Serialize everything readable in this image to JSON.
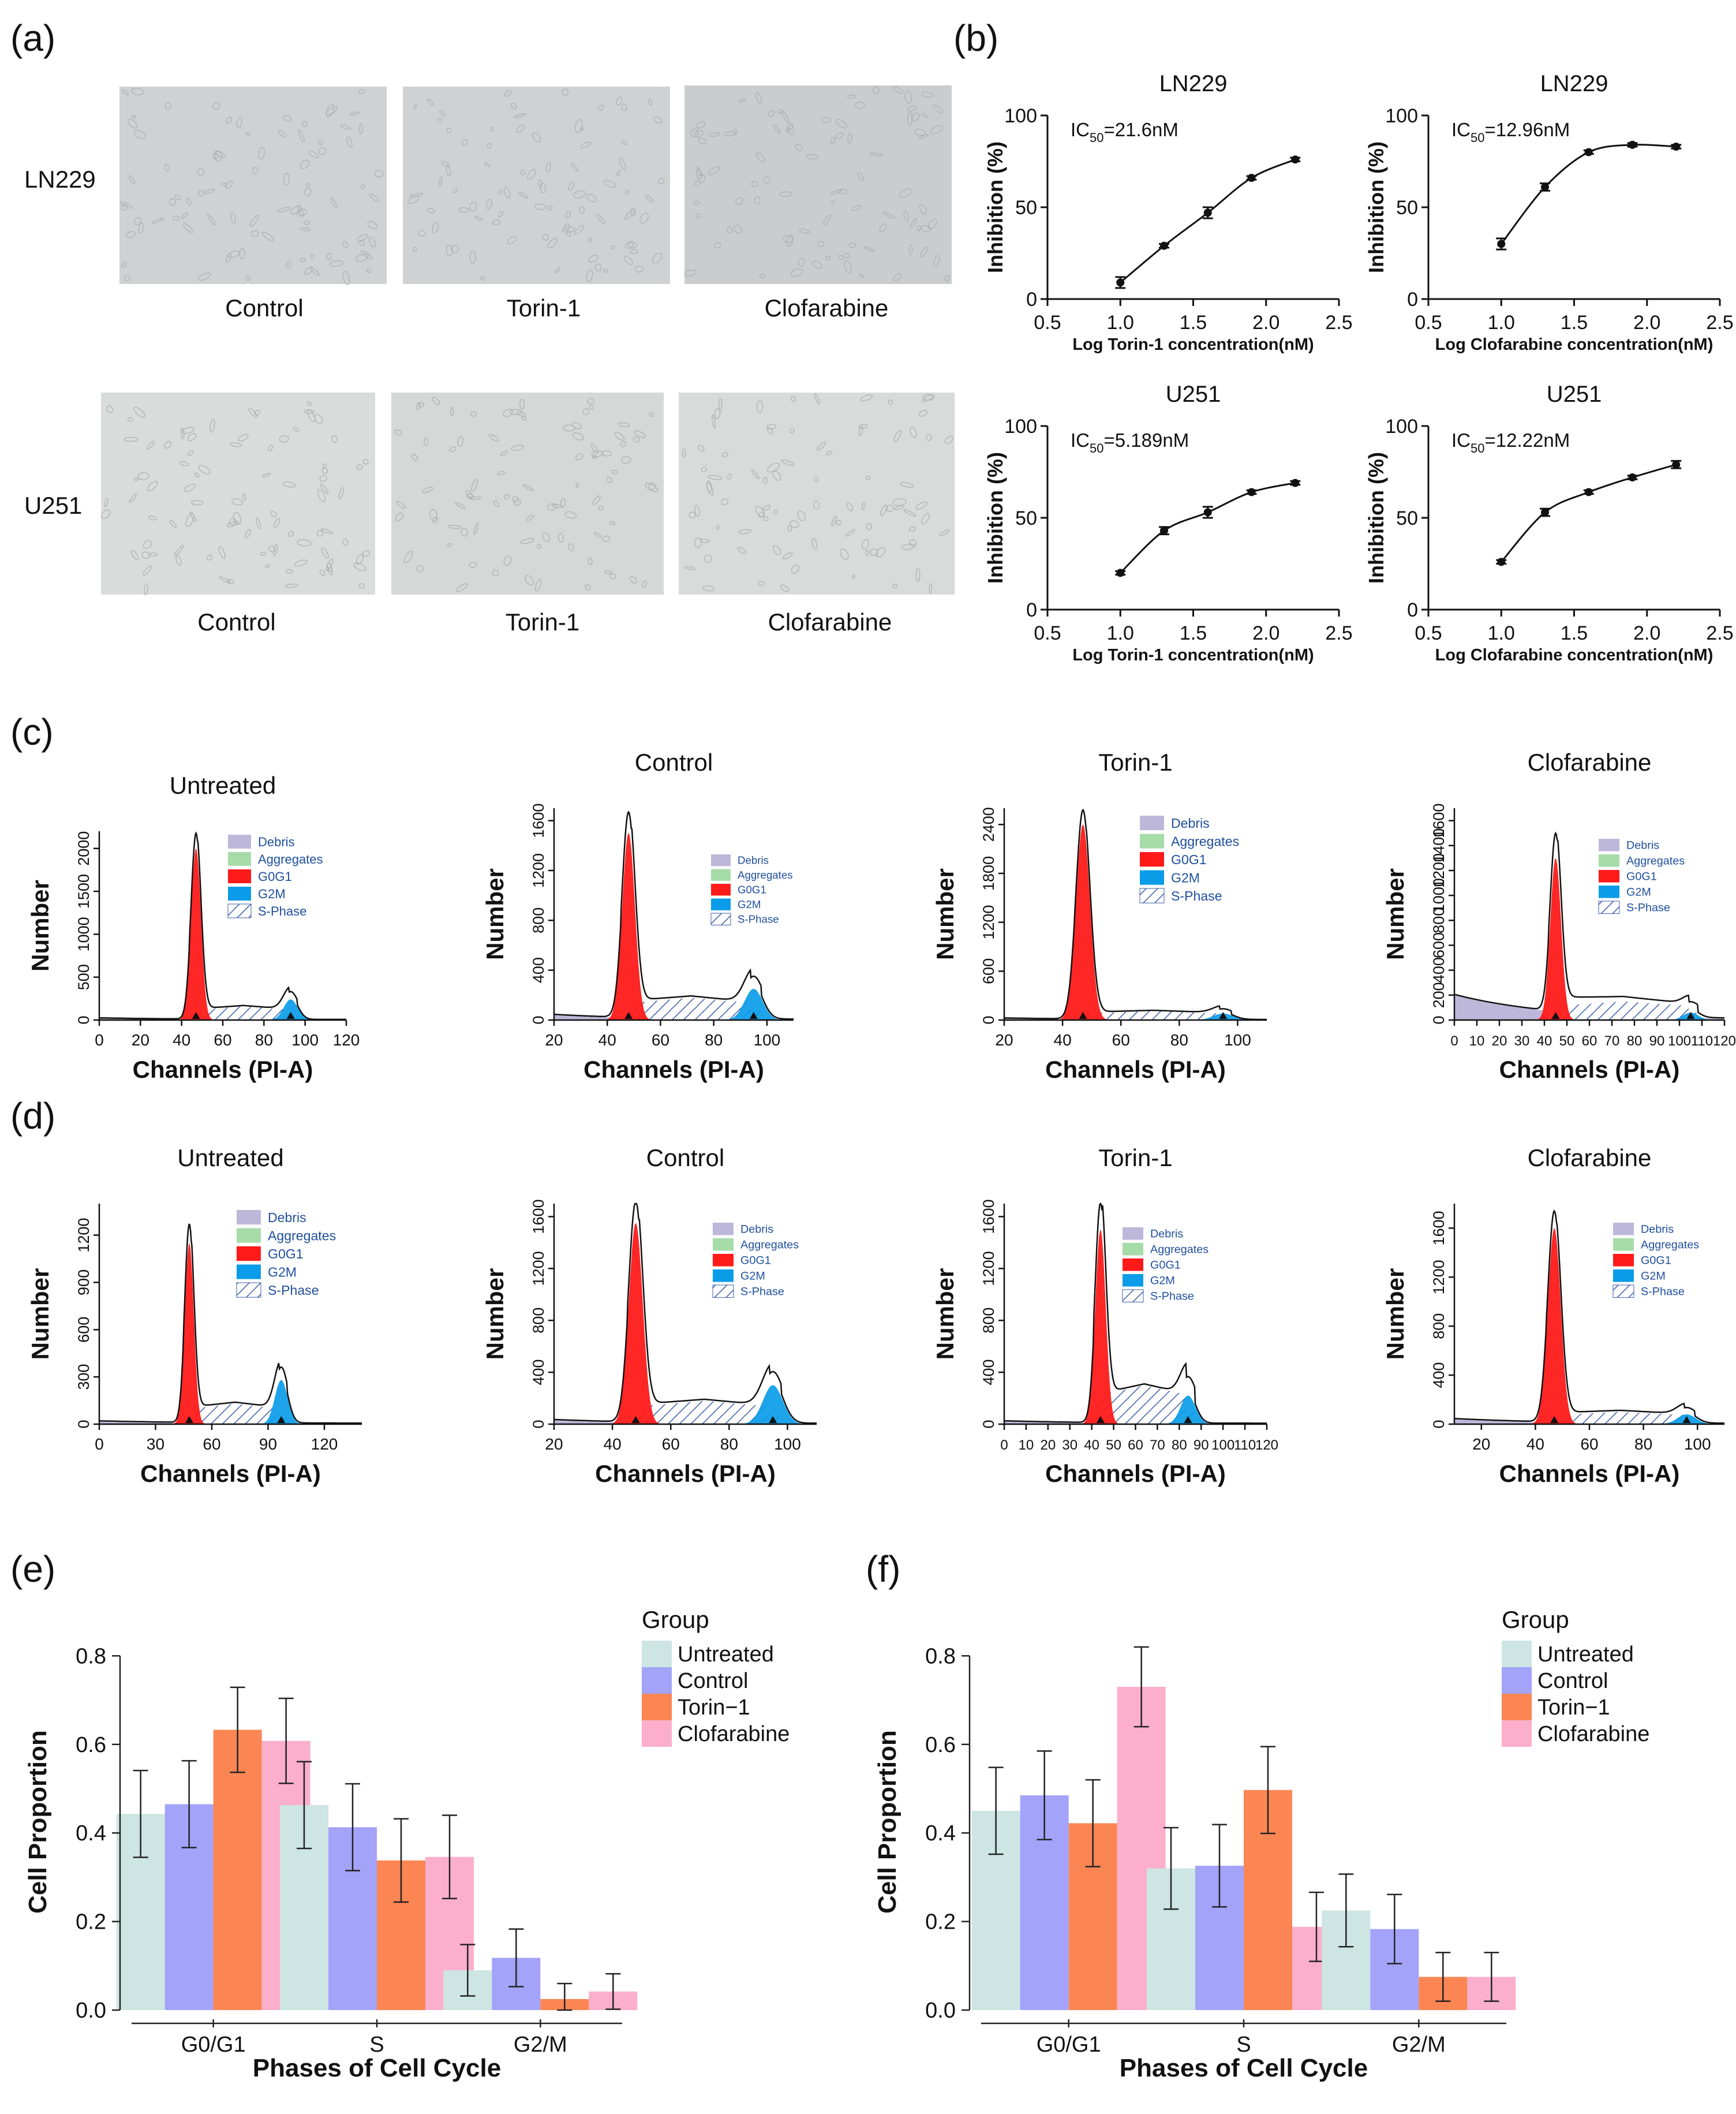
{
  "panel_labels": {
    "a": "(a)",
    "b": "(b)",
    "c": "(c)",
    "d": "(d)",
    "e": "(e)",
    "f": "(f)"
  },
  "panel_a": {
    "rows": [
      {
        "label": "LN229",
        "images": [
          "Control",
          "Torin-1",
          "Clofarabine"
        ]
      },
      {
        "label": "U251",
        "images": [
          "Control",
          "Torin-1",
          "Clofarabine"
        ]
      }
    ],
    "colors": {
      "tile": "#cfd2d2",
      "cell": "#a9aeae"
    }
  },
  "chart_data": [
    {
      "id": "b1",
      "type": "scatter",
      "title": "LN229",
      "annotation": "IC50=21.6nM",
      "ic_prefix": "IC",
      "ic_sub": "50",
      "ic_value": "=21.6nM",
      "xlabel": "Log Torin-1 concentration(nM)",
      "ylabel": "Inhibition (%)",
      "xlim": [
        0.5,
        2.5
      ],
      "ylim": [
        0,
        100
      ],
      "xticks": [
        "0.5",
        "1.0",
        "1.5",
        "2.0",
        "2.5"
      ],
      "yticks": [
        "0",
        "50",
        "100"
      ],
      "x": [
        1.0,
        1.3,
        1.6,
        1.9,
        2.2
      ],
      "y": [
        9,
        29,
        47,
        66,
        76
      ],
      "err": [
        3,
        1,
        3,
        1,
        1
      ]
    },
    {
      "id": "b2",
      "type": "scatter",
      "title": "LN229",
      "annotation": "IC50=12.96nM",
      "ic_prefix": "IC",
      "ic_sub": "50",
      "ic_value": "=12.96nM",
      "xlabel": "Log Clofarabine concentration(nM)",
      "ylabel": "Inhibition (%)",
      "xlim": [
        0.5,
        2.5
      ],
      "ylim": [
        0,
        100
      ],
      "xticks": [
        "0.5",
        "1.0",
        "1.5",
        "2.0",
        "2.5"
      ],
      "yticks": [
        "0",
        "50",
        "100"
      ],
      "x": [
        1.0,
        1.3,
        1.6,
        1.9,
        2.2
      ],
      "y": [
        30,
        61,
        80,
        84,
        83
      ],
      "err": [
        3,
        2,
        1,
        1,
        1
      ]
    },
    {
      "id": "b3",
      "type": "scatter",
      "title": "U251",
      "annotation": "IC50=5.189nM",
      "ic_prefix": "IC",
      "ic_sub": "50",
      "ic_value": "=5.189nM",
      "xlabel": "Log Torin-1 concentration(nM)",
      "ylabel": "Inhibition (%)",
      "xlim": [
        0.5,
        2.5
      ],
      "ylim": [
        0,
        100
      ],
      "xticks": [
        "0.5",
        "1.0",
        "1.5",
        "2.0",
        "2.5"
      ],
      "yticks": [
        "0",
        "50",
        "100"
      ],
      "x": [
        1.0,
        1.3,
        1.6,
        1.9,
        2.2
      ],
      "y": [
        20,
        43,
        53,
        64,
        69
      ],
      "err": [
        1,
        2,
        3,
        1,
        1
      ]
    },
    {
      "id": "b4",
      "type": "scatter",
      "title": "U251",
      "annotation": "IC50=12.22nM",
      "ic_prefix": "IC",
      "ic_sub": "50",
      "ic_value": "=12.22nM",
      "xlabel": "Log Clofarabine concentration(nM)",
      "ylabel": "Inhibition (%)",
      "xlim": [
        0.5,
        2.5
      ],
      "ylim": [
        0,
        100
      ],
      "xticks": [
        "0.5",
        "1.0",
        "1.5",
        "2.0",
        "2.5"
      ],
      "yticks": [
        "0",
        "50",
        "100"
      ],
      "x": [
        1.0,
        1.3,
        1.6,
        1.9,
        2.2
      ],
      "y": [
        26,
        53,
        64,
        72,
        79
      ],
      "err": [
        1,
        2,
        1,
        1,
        2
      ]
    },
    {
      "id": "c1",
      "type": "area",
      "title": "Untreated",
      "xlabel": "Channels (PI-A)",
      "ylabel": "Number",
      "xlim": [
        0,
        120
      ],
      "ylim": [
        0,
        2200
      ],
      "xticks": [
        "0",
        "20",
        "40",
        "60",
        "80",
        "100",
        "120"
      ],
      "yticks": [
        "0",
        "500",
        "1000",
        "1500",
        "2000"
      ],
      "g0g1_peak": 47,
      "g0g1_height": 2000,
      "g2m_peak": 93,
      "g2m_height": 240,
      "s_level": 160,
      "debris_level": 20,
      "legend": [
        "Debris",
        "Aggregates",
        "G0G1",
        "G2M",
        "S-Phase"
      ]
    },
    {
      "id": "c2",
      "type": "area",
      "title": "Control",
      "xlabel": "Channels (PI-A)",
      "ylabel": "Number",
      "xlim": [
        20,
        110
      ],
      "ylim": [
        0,
        1700
      ],
      "xticks": [
        "20",
        "40",
        "60",
        "80",
        "100"
      ],
      "yticks": [
        "0",
        "400",
        "800",
        "1200",
        "1600"
      ],
      "g0g1_peak": 48,
      "g0g1_height": 1500,
      "g2m_peak": 95,
      "g2m_height": 250,
      "s_level": 180,
      "debris_level": 40,
      "legend": [
        "Debris",
        "Aggregates",
        "G0G1",
        "G2M",
        "S-Phase"
      ]
    },
    {
      "id": "c3",
      "type": "area",
      "title": "Torin-1",
      "xlabel": "Channels (PI-A)",
      "ylabel": "Number",
      "xlim": [
        20,
        110
      ],
      "ylim": [
        0,
        2600
      ],
      "xticks": [
        "20",
        "40",
        "60",
        "80",
        "100"
      ],
      "yticks": [
        "0",
        "600",
        "1200",
        "1800",
        "2400"
      ],
      "g0g1_peak": 47,
      "g0g1_height": 2400,
      "g2m_peak": 95,
      "g2m_height": 80,
      "s_level": 110,
      "debris_level": 20,
      "legend": [
        "Debris",
        "Aggregates",
        "G0G1",
        "G2M",
        "S-Phase"
      ]
    },
    {
      "id": "c4",
      "type": "area",
      "title": "Clofarabine",
      "xlabel": "Channels (PI-A)",
      "ylabel": "Number",
      "xlim": [
        0,
        120
      ],
      "ylim": [
        0,
        1700
      ],
      "xticks": [
        "0",
        "10",
        "20",
        "30",
        "40",
        "50",
        "60",
        "70",
        "80",
        "90",
        "100",
        "110",
        "120"
      ],
      "yticks": [
        "0",
        "200",
        "400",
        "600",
        "800",
        "1000",
        "1200",
        "1400",
        "1600"
      ],
      "g0g1_peak": 45,
      "g0g1_height": 1300,
      "g2m_peak": 105,
      "g2m_height": 60,
      "s_level": 150,
      "debris_level": 200,
      "legend": [
        "Debris",
        "Aggregates",
        "G0G1",
        "G2M",
        "S-Phase"
      ]
    },
    {
      "id": "d1",
      "type": "area",
      "title": "Untreated",
      "xlabel": "Channels (PI-A)",
      "ylabel": "Number",
      "xlim": [
        0,
        140
      ],
      "ylim": [
        0,
        1400
      ],
      "xticks": [
        "0",
        "30",
        "60",
        "90",
        "120"
      ],
      "yticks": [
        "0",
        "300",
        "600",
        "900",
        "1200"
      ],
      "g0g1_peak": 48,
      "g0g1_height": 1150,
      "g2m_peak": 97,
      "g2m_height": 280,
      "s_level": 130,
      "debris_level": 15,
      "legend": [
        "Debris",
        "Aggregates",
        "G0G1",
        "G2M",
        "S-Phase"
      ]
    },
    {
      "id": "d2",
      "type": "area",
      "title": "Control",
      "xlabel": "Channels (PI-A)",
      "ylabel": "Number",
      "xlim": [
        20,
        110
      ],
      "ylim": [
        0,
        1700
      ],
      "xticks": [
        "20",
        "40",
        "60",
        "80",
        "100"
      ],
      "yticks": [
        "0",
        "400",
        "800",
        "1200",
        "1600"
      ],
      "g0g1_peak": 48,
      "g0g1_height": 1550,
      "g2m_peak": 95,
      "g2m_height": 300,
      "s_level": 180,
      "debris_level": 30,
      "legend": [
        "Debris",
        "Aggregates",
        "G0G1",
        "G2M",
        "S-Phase"
      ]
    },
    {
      "id": "d3",
      "type": "area",
      "title": "Torin-1",
      "xlabel": "Channels (PI-A)",
      "ylabel": "Number",
      "xlim": [
        0,
        120
      ],
      "ylim": [
        0,
        1700
      ],
      "xticks": [
        "0",
        "10",
        "20",
        "30",
        "40",
        "50",
        "60",
        "70",
        "80",
        "90",
        "100",
        "110",
        "120"
      ],
      "yticks": [
        "0",
        "400",
        "800",
        "1200",
        "1600"
      ],
      "g0g1_peak": 44,
      "g0g1_height": 1500,
      "g2m_peak": 84,
      "g2m_height": 220,
      "s_level": 300,
      "debris_level": 20,
      "legend": [
        "Debris",
        "Aggregates",
        "G0G1",
        "G2M",
        "S-Phase"
      ]
    },
    {
      "id": "d4",
      "type": "area",
      "title": "Clofarabine",
      "xlabel": "Channels (PI-A)",
      "ylabel": "Number",
      "xlim": [
        10,
        110
      ],
      "ylim": [
        0,
        1800
      ],
      "xticks": [
        "20",
        "40",
        "60",
        "80",
        "100"
      ],
      "yticks": [
        "0",
        "400",
        "800",
        "1200",
        "1600"
      ],
      "g0g1_peak": 47,
      "g0g1_height": 1600,
      "g2m_peak": 96,
      "g2m_height": 80,
      "s_level": 100,
      "debris_level": 40,
      "legend": [
        "Debris",
        "Aggregates",
        "G0G1",
        "G2M",
        "S-Phase"
      ]
    },
    {
      "id": "e",
      "type": "bar",
      "xlabel": "Phases of Cell Cycle",
      "ylabel": "Cell Proportion",
      "ylim": [
        0,
        0.85
      ],
      "yticks": [
        "0.0",
        "0.2",
        "0.4",
        "0.6",
        "0.8"
      ],
      "categories": [
        "G0/G1",
        "S",
        "G2/M"
      ],
      "legend_title": "Group",
      "series": [
        {
          "name": "Untreated",
          "color": "#cde5e3",
          "values": [
            0.443,
            0.463,
            0.09
          ],
          "err": [
            0.098,
            0.098,
            0.058
          ]
        },
        {
          "name": "Control",
          "color": "#a3a3fa",
          "values": [
            0.465,
            0.413,
            0.118
          ],
          "err": [
            0.098,
            0.098,
            0.065
          ]
        },
        {
          "name": "Torin−1",
          "color": "#fb8653",
          "values": [
            0.633,
            0.338,
            0.025
          ],
          "err": [
            0.096,
            0.094,
            0.035
          ]
        },
        {
          "name": "Clofarabine",
          "color": "#fbafcc",
          "values": [
            0.608,
            0.346,
            0.042
          ],
          "err": [
            0.096,
            0.094,
            0.04
          ]
        }
      ]
    },
    {
      "id": "f",
      "type": "bar",
      "xlabel": "Phases of Cell Cycle",
      "ylabel": "Cell Proportion",
      "ylim": [
        0,
        0.85
      ],
      "yticks": [
        "0.0",
        "0.2",
        "0.4",
        "0.6",
        "0.8"
      ],
      "categories": [
        "G0/G1",
        "S",
        "G2/M"
      ],
      "legend_title": "Group",
      "series": [
        {
          "name": "Untreated",
          "color": "#cde5e3",
          "values": [
            0.45,
            0.32,
            0.225
          ],
          "err": [
            0.098,
            0.092,
            0.082
          ]
        },
        {
          "name": "Control",
          "color": "#a3a3fa",
          "values": [
            0.485,
            0.326,
            0.183
          ],
          "err": [
            0.1,
            0.093,
            0.078
          ]
        },
        {
          "name": "Torin−1",
          "color": "#fb8653",
          "values": [
            0.422,
            0.497,
            0.075
          ],
          "err": [
            0.098,
            0.098,
            0.055
          ]
        },
        {
          "name": "Clofarabine",
          "color": "#fbafcc",
          "values": [
            0.73,
            0.188,
            0.075
          ],
          "err": [
            0.09,
            0.078,
            0.055
          ]
        }
      ]
    }
  ],
  "histogram_colors": {
    "debris": "#bdb7d9",
    "aggregates": "#a6dca8",
    "g0g1": "#ff1a1a",
    "g2m": "#0a9ce8",
    "s_phase": "#2a4fa0",
    "legend_text": "#1f4f9e"
  }
}
